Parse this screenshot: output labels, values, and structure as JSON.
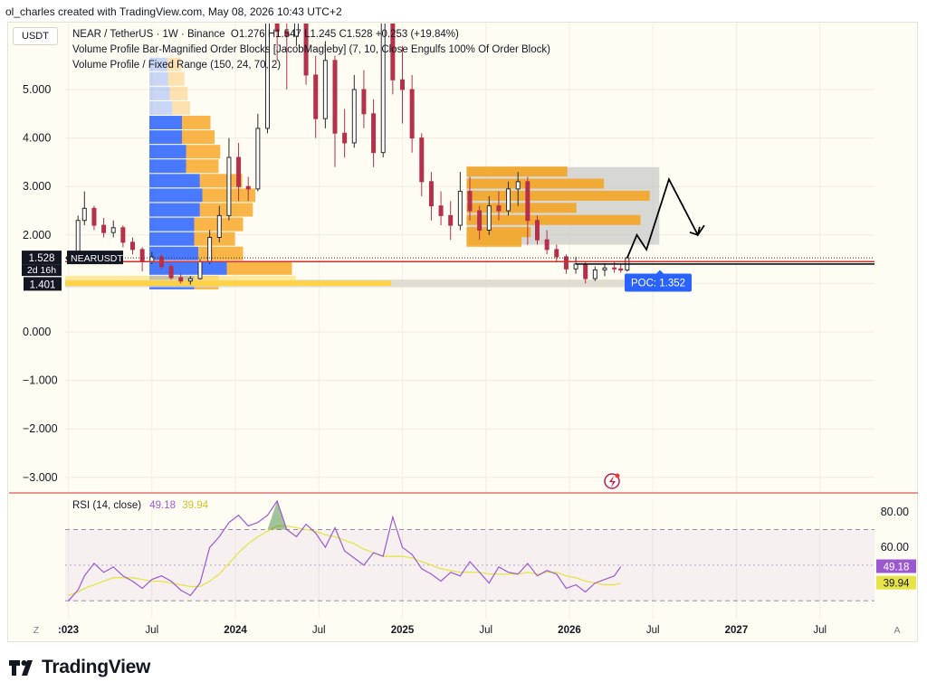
{
  "caption": "ol_charles created with TradingView.com, May 08, 2026 10:43 UTC+2",
  "symbol_currency": "USDT",
  "legend": {
    "pair": "NEAR / TetherUS · 1W · Binance",
    "ohlc": "O1.276  H1.547  L1.245  C1.528  +0.253 (+19.84%)",
    "indicator1": "Volume Profile Bar-Magnified Order Blocks [JacobMagleby] (7, 10, Close Engulfs 100% Of Order Block)",
    "indicator2": "Volume Profile / Fixed Range (150, 24, 70, 2)"
  },
  "price_labels": {
    "last_price": "1.528",
    "ticker": "NEARUSDT",
    "countdown": "2d 16h",
    "level": "1.401",
    "poc": "POC: 1.352"
  },
  "rsi": {
    "label": "RSI (14, close)",
    "value": "49.18",
    "ma_value": "39.94",
    "axis": [
      "80.00",
      "60.00"
    ]
  },
  "bottom_controls": {
    "left": "Z",
    "right": "A"
  },
  "brand": "TradingView",
  "colors": {
    "up": "#2a2a2a",
    "down": "#b5304a",
    "rsi_line": "#9b59d0",
    "rsi_ma": "#e6e44a",
    "poc_box": "#2962ff",
    "order_block": "#f7a21b",
    "volume_blue": "#2962ff",
    "red_line": "#d32f2f"
  },
  "chart_data": [
    {
      "type": "candlestick",
      "title": "",
      "x_ticks": [
        ":023",
        "Jul",
        "2024",
        "Jul",
        "2025",
        "Jul",
        "2026",
        "Jul",
        "2027",
        "Jul"
      ],
      "y_ticks": [
        5.0,
        4.0,
        3.0,
        2.0,
        1.0,
        0.0,
        -1.0,
        -2.0,
        -3.0
      ],
      "y_tick_labels": [
        "5.000",
        "4.000",
        "3.000",
        "2.000",
        "",
        "0.000",
        "−1.000",
        "−2.000",
        "−3.000"
      ],
      "ylim": [
        -3.25,
        6.4
      ],
      "x_range": [
        "2022-12-26",
        "2027-10-25"
      ],
      "ohlc": [
        [
          "2023-01-02",
          1.5,
          1.6,
          1.4,
          1.55
        ],
        [
          "2023-01-23",
          1.55,
          2.4,
          1.5,
          2.3
        ],
        [
          "2023-02-06",
          2.3,
          2.9,
          2.2,
          2.55
        ],
        [
          "2023-02-27",
          2.55,
          2.6,
          2.1,
          2.2
        ],
        [
          "2023-03-20",
          2.2,
          2.35,
          1.95,
          2.05
        ],
        [
          "2023-04-10",
          2.05,
          2.3,
          1.95,
          2.15
        ],
        [
          "2023-05-01",
          2.15,
          2.2,
          1.75,
          1.85
        ],
        [
          "2023-05-22",
          1.85,
          1.95,
          1.6,
          1.7
        ],
        [
          "2023-06-12",
          1.7,
          1.75,
          1.25,
          1.45
        ],
        [
          "2023-07-03",
          1.45,
          1.65,
          1.4,
          1.55
        ],
        [
          "2023-07-24",
          1.55,
          1.6,
          1.3,
          1.35
        ],
        [
          "2023-08-14",
          1.35,
          1.4,
          1.08,
          1.12
        ],
        [
          "2023-09-04",
          1.12,
          1.2,
          1.0,
          1.05
        ],
        [
          "2023-09-25",
          1.05,
          1.15,
          0.98,
          1.1
        ],
        [
          "2023-10-16",
          1.1,
          1.5,
          1.08,
          1.45
        ],
        [
          "2023-11-06",
          1.45,
          2.1,
          1.4,
          1.95
        ],
        [
          "2023-11-27",
          1.95,
          2.6,
          1.85,
          2.4
        ],
        [
          "2023-12-18",
          2.4,
          4.0,
          2.3,
          3.6
        ],
        [
          "2024-01-08",
          3.6,
          3.9,
          2.7,
          3.0
        ],
        [
          "2024-01-29",
          3.0,
          3.2,
          2.7,
          2.95
        ],
        [
          "2024-02-19",
          2.95,
          4.5,
          2.9,
          4.2
        ],
        [
          "2024-03-11",
          4.2,
          8.0,
          4.1,
          7.1
        ],
        [
          "2024-04-01",
          7.1,
          8.8,
          5.6,
          6.2
        ],
        [
          "2024-04-22",
          6.2,
          6.9,
          5.0,
          6.1
        ],
        [
          "2024-05-13",
          6.1,
          7.7,
          5.9,
          6.9
        ],
        [
          "2024-06-03",
          6.9,
          7.1,
          5.1,
          5.3
        ],
        [
          "2024-06-24",
          5.3,
          5.7,
          4.0,
          4.4
        ],
        [
          "2024-07-15",
          4.4,
          6.0,
          4.2,
          5.6
        ],
        [
          "2024-08-05",
          5.6,
          5.7,
          3.4,
          4.1
        ],
        [
          "2024-08-26",
          4.1,
          4.6,
          3.6,
          3.9
        ],
        [
          "2024-09-16",
          3.9,
          5.3,
          3.8,
          5.0
        ],
        [
          "2024-10-07",
          5.0,
          5.4,
          4.2,
          4.5
        ],
        [
          "2024-10-28",
          4.5,
          4.8,
          3.4,
          3.7
        ],
        [
          "2024-11-18",
          3.7,
          8.2,
          3.6,
          7.2
        ],
        [
          "2024-12-09",
          7.2,
          8.0,
          4.9,
          5.2
        ],
        [
          "2024-12-30",
          5.2,
          5.9,
          4.3,
          5.0
        ],
        [
          "2025-01-20",
          5.0,
          5.3,
          3.7,
          4.0
        ],
        [
          "2025-02-10",
          4.0,
          4.1,
          2.8,
          3.1
        ],
        [
          "2025-03-03",
          3.1,
          3.3,
          2.3,
          2.6
        ],
        [
          "2025-03-24",
          2.6,
          2.9,
          2.2,
          2.4
        ],
        [
          "2025-04-14",
          2.4,
          2.7,
          1.9,
          2.2
        ],
        [
          "2025-05-05",
          2.2,
          3.3,
          2.1,
          2.9
        ],
        [
          "2025-05-26",
          2.9,
          3.2,
          2.3,
          2.5
        ],
        [
          "2025-06-16",
          2.5,
          2.6,
          1.9,
          2.1
        ],
        [
          "2025-07-07",
          2.1,
          2.8,
          2.0,
          2.6
        ],
        [
          "2025-07-28",
          2.6,
          2.9,
          2.3,
          2.5
        ],
        [
          "2025-08-18",
          2.5,
          3.1,
          2.4,
          2.95
        ],
        [
          "2025-09-08",
          2.95,
          3.3,
          2.6,
          3.1
        ],
        [
          "2025-09-29",
          3.1,
          3.2,
          1.8,
          2.3
        ],
        [
          "2025-10-20",
          2.3,
          2.4,
          1.8,
          1.9
        ],
        [
          "2025-11-10",
          1.9,
          2.1,
          1.6,
          1.7
        ],
        [
          "2025-12-01",
          1.7,
          1.8,
          1.45,
          1.55
        ],
        [
          "2025-12-22",
          1.55,
          1.6,
          1.2,
          1.3
        ],
        [
          "2026-01-12",
          1.3,
          1.55,
          1.2,
          1.4
        ],
        [
          "2026-02-02",
          1.4,
          1.45,
          1.0,
          1.1
        ],
        [
          "2026-02-23",
          1.1,
          1.35,
          1.05,
          1.28
        ],
        [
          "2026-03-16",
          1.28,
          1.42,
          1.15,
          1.32
        ],
        [
          "2026-04-06",
          1.32,
          1.45,
          1.22,
          1.3
        ],
        [
          "2026-04-20",
          1.3,
          1.4,
          1.22,
          1.276
        ],
        [
          "2026-05-04",
          1.276,
          1.547,
          1.245,
          1.528
        ]
      ],
      "horizontal_lines": [
        1.528,
        1.45,
        1.401
      ],
      "projection_path": [
        [
          "2026-05-04",
          1.528
        ],
        [
          "2026-05-25",
          2.0
        ],
        [
          "2026-06-15",
          1.7
        ],
        [
          "2026-08-03",
          3.15
        ],
        [
          "2026-10-05",
          2.0
        ],
        [
          "2026-10-19",
          2.2
        ]
      ],
      "order_block_zone": {
        "from": "2025-05-19",
        "to": "2026-07-13",
        "low": 1.8,
        "high": 3.4
      },
      "volume_profile_rows": [
        {
          "price": 5.5,
          "blue": 0.22,
          "orange": 0.17
        },
        {
          "price": 5.2,
          "blue": 0.23,
          "orange": 0.2
        },
        {
          "price": 4.9,
          "blue": 0.25,
          "orange": 0.22
        },
        {
          "price": 4.6,
          "blue": 0.28,
          "orange": 0.22
        },
        {
          "price": 4.3,
          "blue": 0.4,
          "orange": 0.35
        },
        {
          "price": 4.0,
          "blue": 0.4,
          "orange": 0.4
        },
        {
          "price": 3.7,
          "blue": 0.45,
          "orange": 0.42
        },
        {
          "price": 3.4,
          "blue": 0.45,
          "orange": 0.4
        },
        {
          "price": 3.1,
          "blue": 0.62,
          "orange": 0.52
        },
        {
          "price": 2.8,
          "blue": 0.65,
          "orange": 0.65
        },
        {
          "price": 2.5,
          "blue": 0.62,
          "orange": 0.65
        },
        {
          "price": 2.2,
          "blue": 0.55,
          "orange": 0.6
        },
        {
          "price": 1.9,
          "blue": 0.55,
          "orange": 0.5
        },
        {
          "price": 1.6,
          "blue": 0.6,
          "orange": 0.55
        },
        {
          "price": 1.3,
          "blue": 0.95,
          "orange": 0.8
        },
        {
          "price": 1.0,
          "blue": 0.55,
          "orange": 0.3
        }
      ]
    },
    {
      "type": "line",
      "title": "RSI (14, close)",
      "ylim": [
        20,
        87
      ],
      "y_ticks": [
        80,
        60
      ],
      "bands": [
        70,
        50,
        30
      ],
      "series": [
        {
          "name": "RSI",
          "values": [
            30,
            36,
            44,
            51,
            46,
            49,
            44,
            41,
            37,
            42,
            44,
            41,
            36,
            33,
            40,
            60,
            66,
            74,
            78,
            72,
            74,
            78,
            86,
            70,
            66,
            73,
            68,
            60,
            71,
            58,
            54,
            50,
            57,
            55,
            77,
            60,
            56,
            48,
            45,
            41,
            46,
            44,
            52,
            46,
            40,
            49,
            46,
            45,
            51,
            44,
            47,
            45,
            37,
            39,
            35,
            40,
            42,
            44,
            49.18
          ]
        },
        {
          "name": "MA",
          "values": [
            33,
            35,
            37,
            39,
            41,
            43,
            43,
            43,
            42,
            41,
            41,
            40,
            39,
            38,
            38,
            41,
            45,
            51,
            57,
            62,
            66,
            69,
            72,
            72,
            71,
            70,
            69,
            67,
            66,
            64,
            62,
            59,
            57,
            55,
            55,
            55,
            54,
            52,
            50,
            48,
            47,
            46,
            46,
            46,
            45,
            45,
            45,
            45,
            46,
            45,
            46,
            46,
            44,
            43,
            41,
            40,
            39,
            39,
            39.94
          ]
        }
      ]
    }
  ]
}
